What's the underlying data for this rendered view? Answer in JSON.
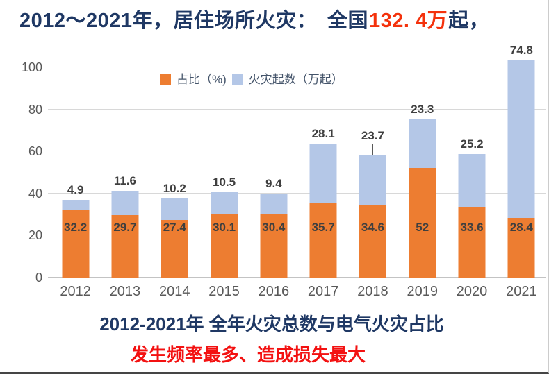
{
  "titles": {
    "top_prefix": "2012～2021年，居住场所火灾：　全国",
    "top_highlight": "132. 4万",
    "top_suffix": "起，",
    "bottom_title": "2012-2021年  全年火灾总数与电气火灾占比",
    "bottom_subtitle": "发生频率最多、造成损失最大"
  },
  "colors": {
    "navy": "#1f3864",
    "highlight_red": "#f4320c",
    "subtitle_red": "#f31111",
    "bar_orange": "#ED7D31",
    "bar_blue": "#B4C7E7",
    "value_label": "#3f3f3f",
    "tick_label": "#595959",
    "gridline": "#d8d8d8",
    "axis_line": "#c3c3c3",
    "legend_text": "#44546a"
  },
  "chart_data": {
    "type": "bar",
    "stacked": true,
    "title": "2012-2021年 全年火灾总数与电气火灾占比",
    "categories": [
      "2012",
      "2013",
      "2014",
      "2015",
      "2016",
      "2017",
      "2018",
      "2019",
      "2020",
      "2021"
    ],
    "series": [
      {
        "name": "占比（%)",
        "color": "#ED7D31",
        "values": [
          32.2,
          29.7,
          27.4,
          30.1,
          30.4,
          35.7,
          34.6,
          52,
          33.6,
          28.4
        ],
        "label_position": "inside"
      },
      {
        "name": "火灾起数（万起）",
        "color": "#B4C7E7",
        "values": [
          4.9,
          11.6,
          10.2,
          10.5,
          9.4,
          28.1,
          23.7,
          23.3,
          25.2,
          74.8
        ],
        "label_position": "above-total"
      }
    ],
    "y_ticks": [
      0,
      20,
      40,
      60,
      80,
      100
    ],
    "ylim": [
      0,
      105
    ],
    "grid": true,
    "legend_position": "top-center",
    "label_leader_categories": [
      "2018"
    ]
  }
}
